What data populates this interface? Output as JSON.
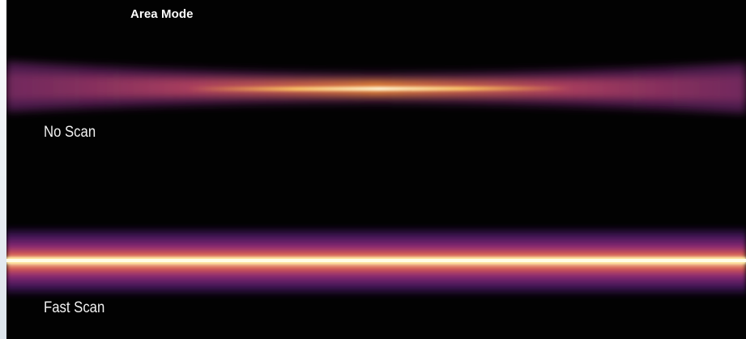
{
  "header": {
    "title": "Area Mode"
  },
  "panels": [
    {
      "caption": "No Scan",
      "beam_profile": "focused-center"
    },
    {
      "caption": "Fast Scan",
      "beam_profile": "uniform"
    }
  ],
  "colors": {
    "background": "#020202",
    "beam_core": "#fff3c0",
    "beam_mid": "#f5a73a",
    "beam_outer": "#b83a7a",
    "beam_halo": "#4a1a6e",
    "text": "#ffffff"
  }
}
